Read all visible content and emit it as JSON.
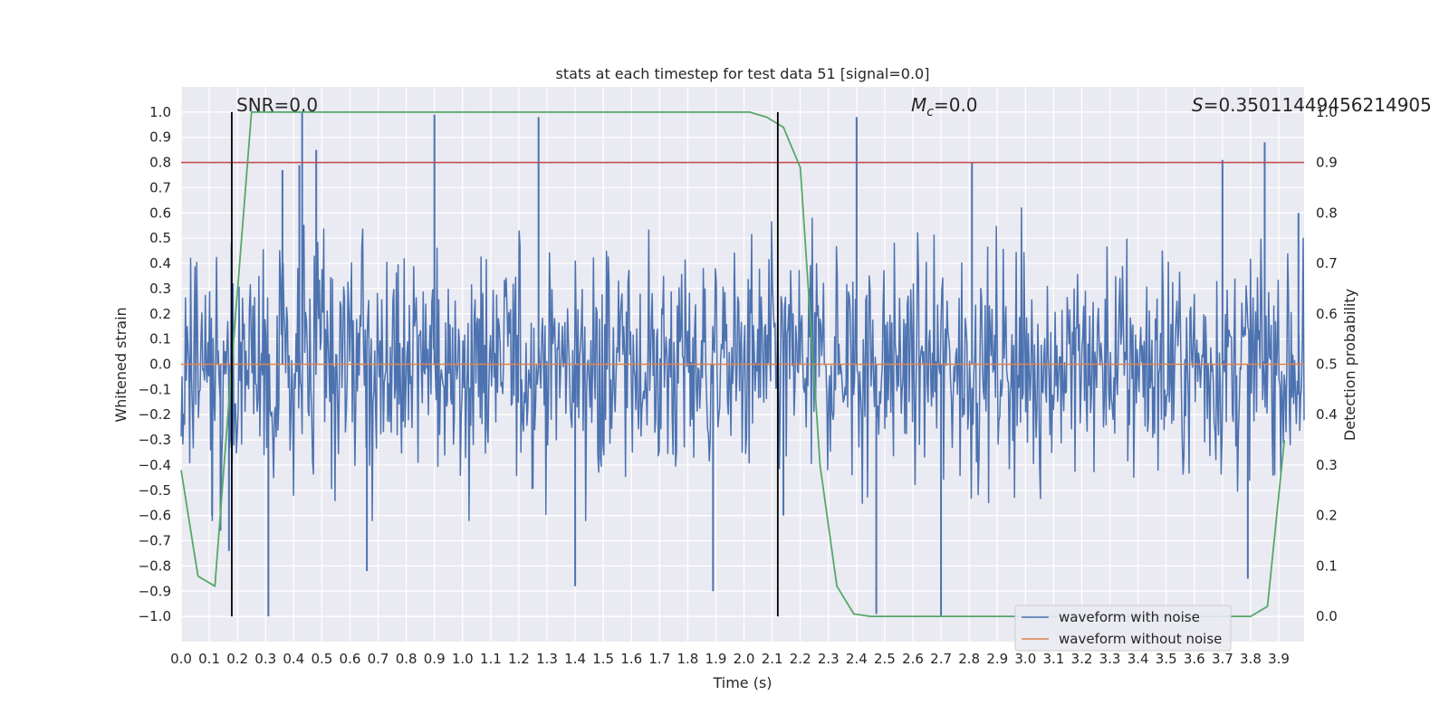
{
  "chart_data": {
    "type": "line",
    "title": "stats at each timestep for test data 51 [signal=0.0]",
    "xlabel": "Time (s)",
    "ylabel": "Whitened strain",
    "y2label": "Detection probability",
    "xlim": [
      0.0,
      3.99
    ],
    "ylim": [
      -1.1,
      1.1
    ],
    "y2lim": [
      -0.05,
      1.05
    ],
    "x_ticks": [
      0.0,
      0.1,
      0.2,
      0.3,
      0.4,
      0.5,
      0.6,
      0.7,
      0.8,
      0.9,
      1.0,
      1.1,
      1.2,
      1.3,
      1.4,
      1.5,
      1.6,
      1.7,
      1.8,
      1.9,
      2.0,
      2.1,
      2.2,
      2.3,
      2.4,
      2.5,
      2.6,
      2.7,
      2.8,
      2.9,
      3.0,
      3.1,
      3.2,
      3.3,
      3.4,
      3.5,
      3.6,
      3.7,
      3.8,
      3.9
    ],
    "x_tick_labels": [
      "0.0",
      "0.1",
      "0.2",
      "0.3",
      "0.4",
      "0.5",
      "0.6",
      "0.7",
      "0.8",
      "0.9",
      "1.0",
      "1.1",
      "1.2",
      "1.3",
      "1.4",
      "1.5",
      "1.6",
      "1.7",
      "1.8",
      "1.9",
      "2.0",
      "2.1",
      "2.2",
      "2.3",
      "2.4",
      "2.5",
      "2.6",
      "2.7",
      "2.8",
      "2.9",
      "3.0",
      "3.1",
      "3.2",
      "3.3",
      "3.4",
      "3.5",
      "3.6",
      "3.7",
      "3.8",
      "3.9"
    ],
    "y_ticks": [
      1.0,
      0.9,
      0.8,
      0.7,
      0.6,
      0.5,
      0.4,
      0.3,
      0.2,
      0.1,
      0.0,
      -0.1,
      -0.2,
      -0.3,
      -0.4,
      -0.5,
      -0.6,
      -0.7,
      -0.8,
      -0.9,
      -1.0
    ],
    "y_tick_labels": [
      "1.0",
      "0.9",
      "0.8",
      "0.7",
      "0.6",
      "0.5",
      "0.4",
      "0.3",
      "0.2",
      "0.1",
      "0.0",
      "−0.1",
      "−0.2",
      "−0.3",
      "−0.4",
      "−0.5",
      "−0.6",
      "−0.7",
      "−0.8",
      "−0.9",
      "−1.0"
    ],
    "y2_ticks": [
      1.0,
      0.9,
      0.8,
      0.7,
      0.6,
      0.5,
      0.4,
      0.3,
      0.2,
      0.1,
      0.0
    ],
    "y2_tick_labels": [
      "1.0",
      "0.9",
      "0.8",
      "0.7",
      "0.6",
      "0.5",
      "0.4",
      "0.3",
      "0.2",
      "0.1",
      "0.0"
    ],
    "grid": true,
    "legend_position": "lower-right",
    "series": [
      {
        "name": "waveform with noise",
        "color": "#4c72b0",
        "axis": "left",
        "x_start": 0.0,
        "x_end": 3.99,
        "spikes": [
          {
            "x": 0.11,
            "y": -0.6
          },
          {
            "x": 0.14,
            "y": -0.66
          },
          {
            "x": 0.17,
            "y": -0.74
          },
          {
            "x": 0.31,
            "y": -1.0
          },
          {
            "x": 0.36,
            "y": 0.77
          },
          {
            "x": 0.42,
            "y": 0.79
          },
          {
            "x": 0.43,
            "y": 1.0
          },
          {
            "x": 0.48,
            "y": 0.85
          },
          {
            "x": 0.66,
            "y": -0.82
          },
          {
            "x": 0.9,
            "y": 0.99
          },
          {
            "x": 1.27,
            "y": 0.98
          },
          {
            "x": 1.4,
            "y": -0.88
          },
          {
            "x": 1.89,
            "y": -0.9
          },
          {
            "x": 2.14,
            "y": -0.6
          },
          {
            "x": 2.4,
            "y": 0.98
          },
          {
            "x": 2.47,
            "y": -0.99
          },
          {
            "x": 2.7,
            "y": -1.0
          },
          {
            "x": 2.81,
            "y": 0.8
          },
          {
            "x": 3.7,
            "y": 0.81
          },
          {
            "x": 3.79,
            "y": -0.85
          },
          {
            "x": 3.85,
            "y": 0.88
          },
          {
            "x": 3.97,
            "y": 0.6
          }
        ]
      },
      {
        "name": "waveform without noise",
        "color": "#dd8452",
        "axis": "left",
        "x": [
          0.0,
          3.99
        ],
        "y": [
          0.0,
          0.0
        ]
      },
      {
        "color": "#55a868",
        "axis": "right",
        "x": [
          0.0,
          0.06,
          0.12,
          0.18,
          0.25,
          0.31,
          0.37,
          0.43,
          0.49,
          0.55,
          0.61,
          0.67,
          0.74,
          0.8,
          0.86,
          0.92,
          0.98,
          1.04,
          1.1,
          1.16,
          1.23,
          1.29,
          1.35,
          1.41,
          1.47,
          1.53,
          1.59,
          1.65,
          1.72,
          1.78,
          1.84,
          1.9,
          1.96,
          2.02,
          2.08,
          2.14,
          2.2,
          2.27,
          2.33,
          2.39,
          2.45,
          2.51,
          2.57,
          2.63,
          2.7,
          2.76,
          2.82,
          2.88,
          2.94,
          3.0,
          3.06,
          3.12,
          3.19,
          3.25,
          3.31,
          3.37,
          3.43,
          3.49,
          3.55,
          3.61,
          3.68,
          3.74,
          3.8,
          3.86,
          3.92
        ],
        "y": [
          0.29,
          0.08,
          0.06,
          0.5,
          1.0,
          1.0,
          1.0,
          1.0,
          1.0,
          1.0,
          1.0,
          1.0,
          1.0,
          1.0,
          1.0,
          1.0,
          1.0,
          1.0,
          1.0,
          1.0,
          1.0,
          1.0,
          1.0,
          1.0,
          1.0,
          1.0,
          1.0,
          1.0,
          1.0,
          1.0,
          1.0,
          1.0,
          1.0,
          1.0,
          0.99,
          0.97,
          0.89,
          0.3,
          0.06,
          0.005,
          0.0,
          0.0,
          0.0,
          0.0,
          0.0,
          0.0,
          0.0,
          0.0,
          0.0,
          0.0,
          0.0,
          0.0,
          0.0,
          0.0,
          0.0,
          0.0,
          0.0,
          0.0,
          0.0,
          0.0,
          0.0,
          0.0,
          0.0,
          0.02,
          0.35
        ]
      }
    ],
    "threshold": {
      "color": "#c44e52",
      "axis": "right",
      "value": 0.9
    },
    "vlines": [
      {
        "x": 0.18,
        "ymin": -1.0,
        "ymax": 1.0,
        "color": "#000000"
      },
      {
        "x": 2.12,
        "ymin": -1.0,
        "ymax": 1.0,
        "color": "#000000"
      }
    ],
    "annotations": {
      "snr": "SNR=0.0",
      "mc_symbol": "M",
      "mc_sub": "c",
      "mc_value": "=0.0",
      "s_symbol": "S",
      "s_value": "=0.35011449456214905"
    }
  }
}
